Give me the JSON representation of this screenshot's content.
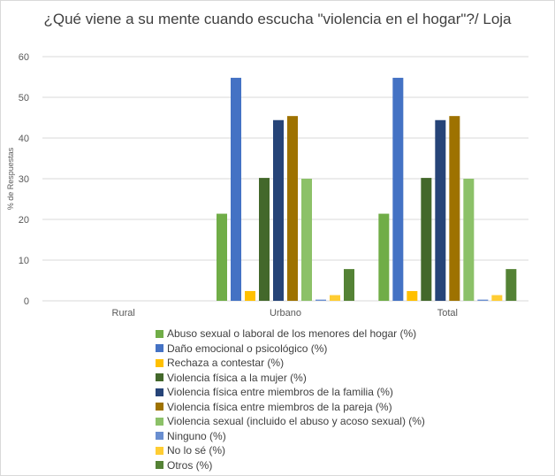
{
  "chart_data": {
    "type": "bar",
    "title": "¿Qué viene a su mente cuando escucha \"violencia en el hogar\"?/ Loja",
    "xlabel": "",
    "ylabel": "% de Respuestas",
    "ylim": [
      0,
      60
    ],
    "yticks": [
      0,
      10,
      20,
      30,
      40,
      50,
      60
    ],
    "grid": true,
    "legend_position": "bottom",
    "categories": [
      "Rural",
      "Urbano",
      "Total"
    ],
    "series": [
      {
        "name": "Abuso sexual o laboral de los menores del hogar (%)",
        "color": "#70ad47",
        "values": [
          0,
          21.4,
          21.4
        ]
      },
      {
        "name": "Daño emocional o psicológico (%)",
        "color": "#4472c4",
        "values": [
          0,
          54.8,
          54.8
        ]
      },
      {
        "name": "Rechaza a contestar (%)",
        "color": "#ffc000",
        "values": [
          0,
          2.4,
          2.4
        ]
      },
      {
        "name": "Violencia física a la mujer (%)",
        "color": "#43682b",
        "values": [
          0,
          30.2,
          30.2
        ]
      },
      {
        "name": "Violencia física entre miembros de la familia (%)",
        "color": "#264478",
        "values": [
          0,
          44.4,
          44.4
        ]
      },
      {
        "name": "Violencia física entre miembros de la pareja (%)",
        "color": "#9e7200",
        "values": [
          0,
          45.4,
          45.4
        ]
      },
      {
        "name": "Violencia sexual (incluido el abuso y acoso sexual) (%)",
        "color": "#8cc168",
        "values": [
          0,
          30.0,
          30.0
        ]
      },
      {
        "name": "Ninguno (%)",
        "color": "#698ed0",
        "values": [
          0,
          0.3,
          0.3
        ]
      },
      {
        "name": "No lo sé (%)",
        "color": "#ffcd33",
        "values": [
          0,
          1.4,
          1.4
        ]
      },
      {
        "name": "Otros (%)",
        "color": "#548235",
        "values": [
          0,
          7.8,
          7.8
        ]
      }
    ]
  }
}
